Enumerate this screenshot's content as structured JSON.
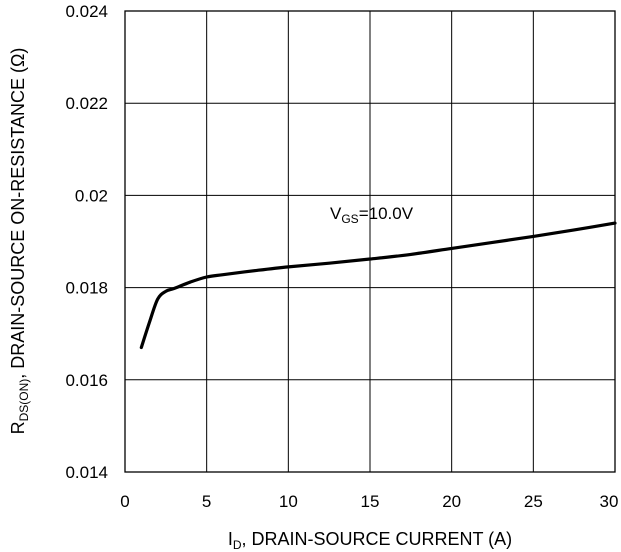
{
  "chart_data": {
    "type": "line",
    "xlabel": {
      "prefix": "I",
      "sub": "D",
      "rest": ", DRAIN-SOURCE CURRENT (A)"
    },
    "ylabel": {
      "prefix": "R",
      "sub": "DS(ON)",
      "rest": ", DRAIN-SOURCE ON-RESISTANCE (Ω)"
    },
    "xlim": [
      0,
      30
    ],
    "ylim": [
      0.014,
      0.024
    ],
    "x_ticks": [
      0,
      5,
      10,
      15,
      20,
      25,
      30
    ],
    "x_tick_labels": [
      "0",
      "5",
      "10",
      "15",
      "20",
      "25",
      "30"
    ],
    "y_ticks": [
      0.014,
      0.016,
      0.018,
      0.02,
      0.022,
      0.024
    ],
    "y_tick_labels": [
      "0.014",
      "0.016",
      "0.018",
      "0.02",
      "0.022",
      "0.024"
    ],
    "grid": true,
    "annotation": {
      "prefix": "V",
      "sub": "GS",
      "rest": "=10.0V"
    },
    "series": [
      {
        "color": "#000000",
        "x": [
          1.0,
          1.5,
          2.0,
          2.5,
          3.0,
          4.0,
          5.0,
          6.0,
          8.0,
          10.0,
          12.5,
          15.0,
          17.5,
          20.0,
          22.5,
          25.0,
          27.5,
          30.0
        ],
        "y": [
          0.0167,
          0.01725,
          0.01775,
          0.01792,
          0.01798,
          0.01812,
          0.01823,
          0.01828,
          0.01837,
          0.01845,
          0.01853,
          0.01862,
          0.01872,
          0.01885,
          0.01898,
          0.01911,
          0.01925,
          0.0194
        ]
      }
    ]
  }
}
